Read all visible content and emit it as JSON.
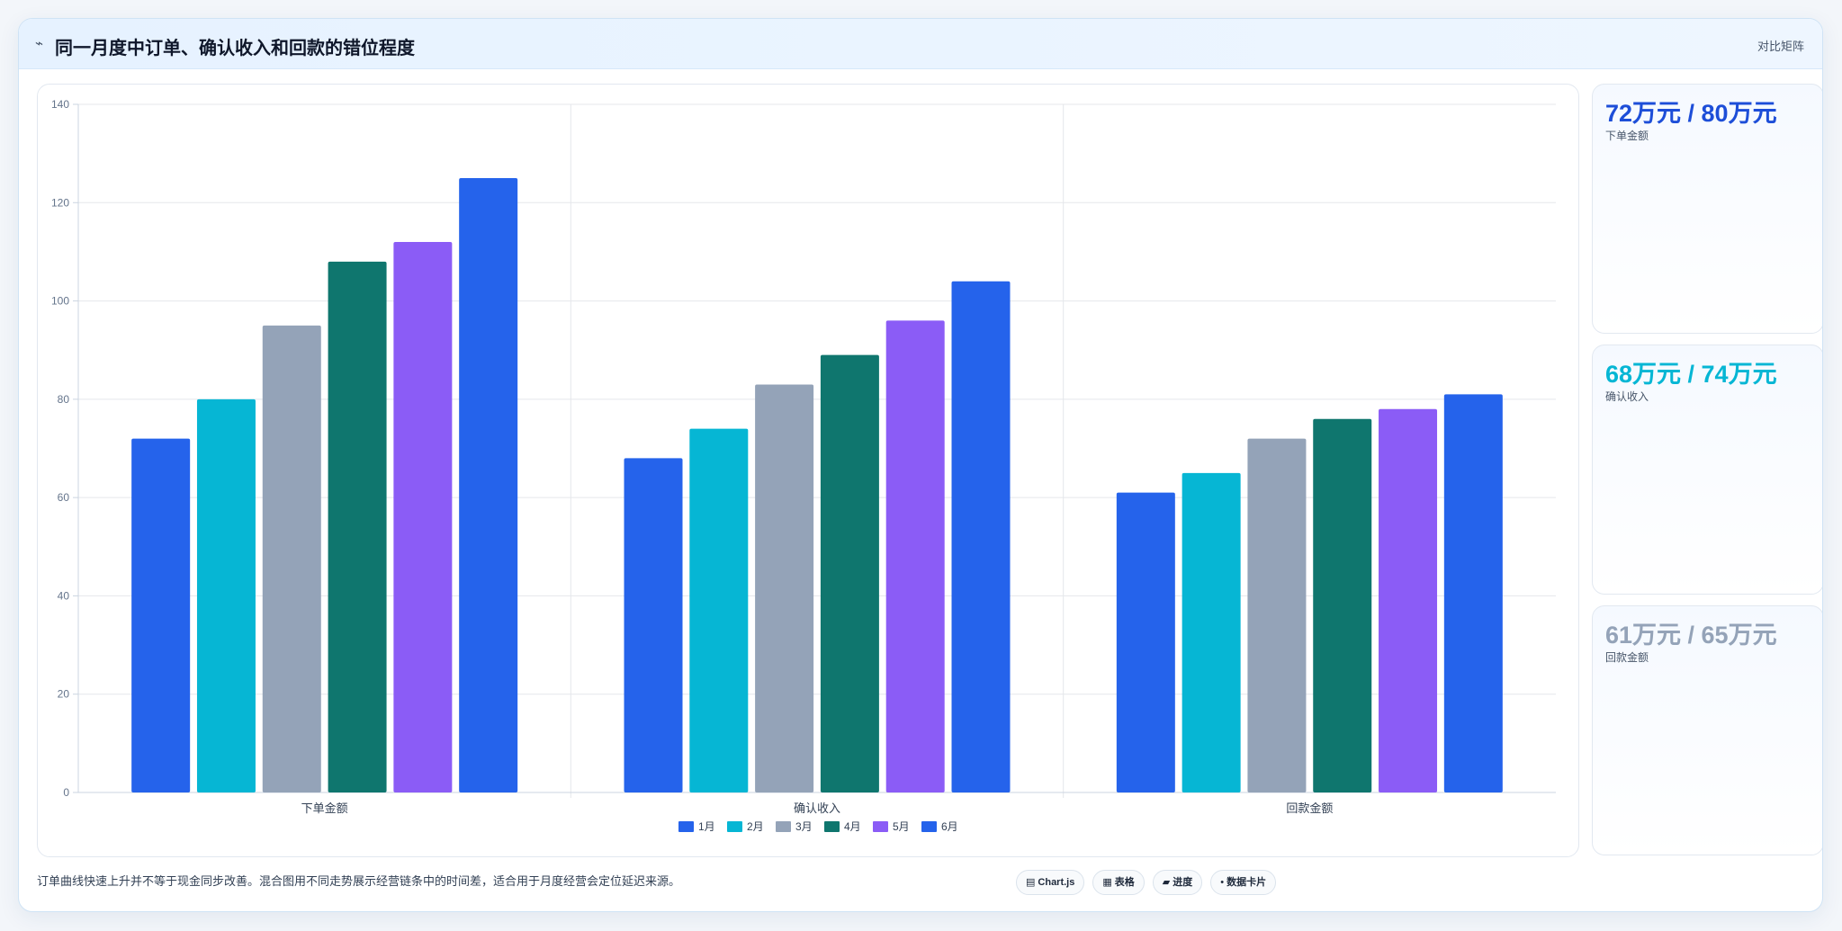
{
  "header": {
    "icon": "chart-trend-icon",
    "icon_glyph": "⌁",
    "title": "同一月度中订单、确认收入和回款的错位程度",
    "action_label": "对比矩阵"
  },
  "chart_data": {
    "type": "bar",
    "title": "",
    "xlabel": "",
    "ylabel": "",
    "categories": [
      "下单金额",
      "确认收入",
      "回款金额"
    ],
    "ylim": [
      0,
      140
    ],
    "yticks": [
      0,
      20,
      40,
      60,
      80,
      100,
      120,
      140
    ],
    "grid": true,
    "legend_position": "bottom",
    "series": [
      {
        "name": "1月",
        "color": "#2563eb",
        "values": [
          72,
          68,
          61
        ]
      },
      {
        "name": "2月",
        "color": "#06b6d4",
        "values": [
          80,
          74,
          65
        ]
      },
      {
        "name": "3月",
        "color": "#94a3b8",
        "values": [
          95,
          83,
          72
        ]
      },
      {
        "name": "4月",
        "color": "#0f766e",
        "values": [
          108,
          89,
          76
        ]
      },
      {
        "name": "5月",
        "color": "#8b5cf6",
        "values": [
          112,
          96,
          78
        ]
      },
      {
        "name": "6月",
        "color": "#2563eb",
        "values": [
          125,
          104,
          81
        ]
      }
    ]
  },
  "stats": [
    {
      "value": "72万元 / 80万元",
      "label": "下单金额",
      "color": "#1d4ed8"
    },
    {
      "value": "68万元 / 74万元",
      "label": "确认收入",
      "color": "#06b6d4"
    },
    {
      "value": "61万元 / 65万元",
      "label": "回款金额",
      "color": "#94a3b8"
    }
  ],
  "footnote": "订单曲线快速上升并不等于现金同步改善。混合图用不同走势展示经营链条中的时间差，适合用于月度经营会定位延迟来源。",
  "tags": [
    {
      "icon": "chart-icon",
      "glyph": "▤",
      "label": "Chart.js"
    },
    {
      "icon": "table-icon",
      "glyph": "▦",
      "label": "表格"
    },
    {
      "icon": "progress-icon",
      "glyph": "▰",
      "label": "进度"
    },
    {
      "icon": "data-card-icon",
      "glyph": "•",
      "label": "数据卡片"
    }
  ]
}
